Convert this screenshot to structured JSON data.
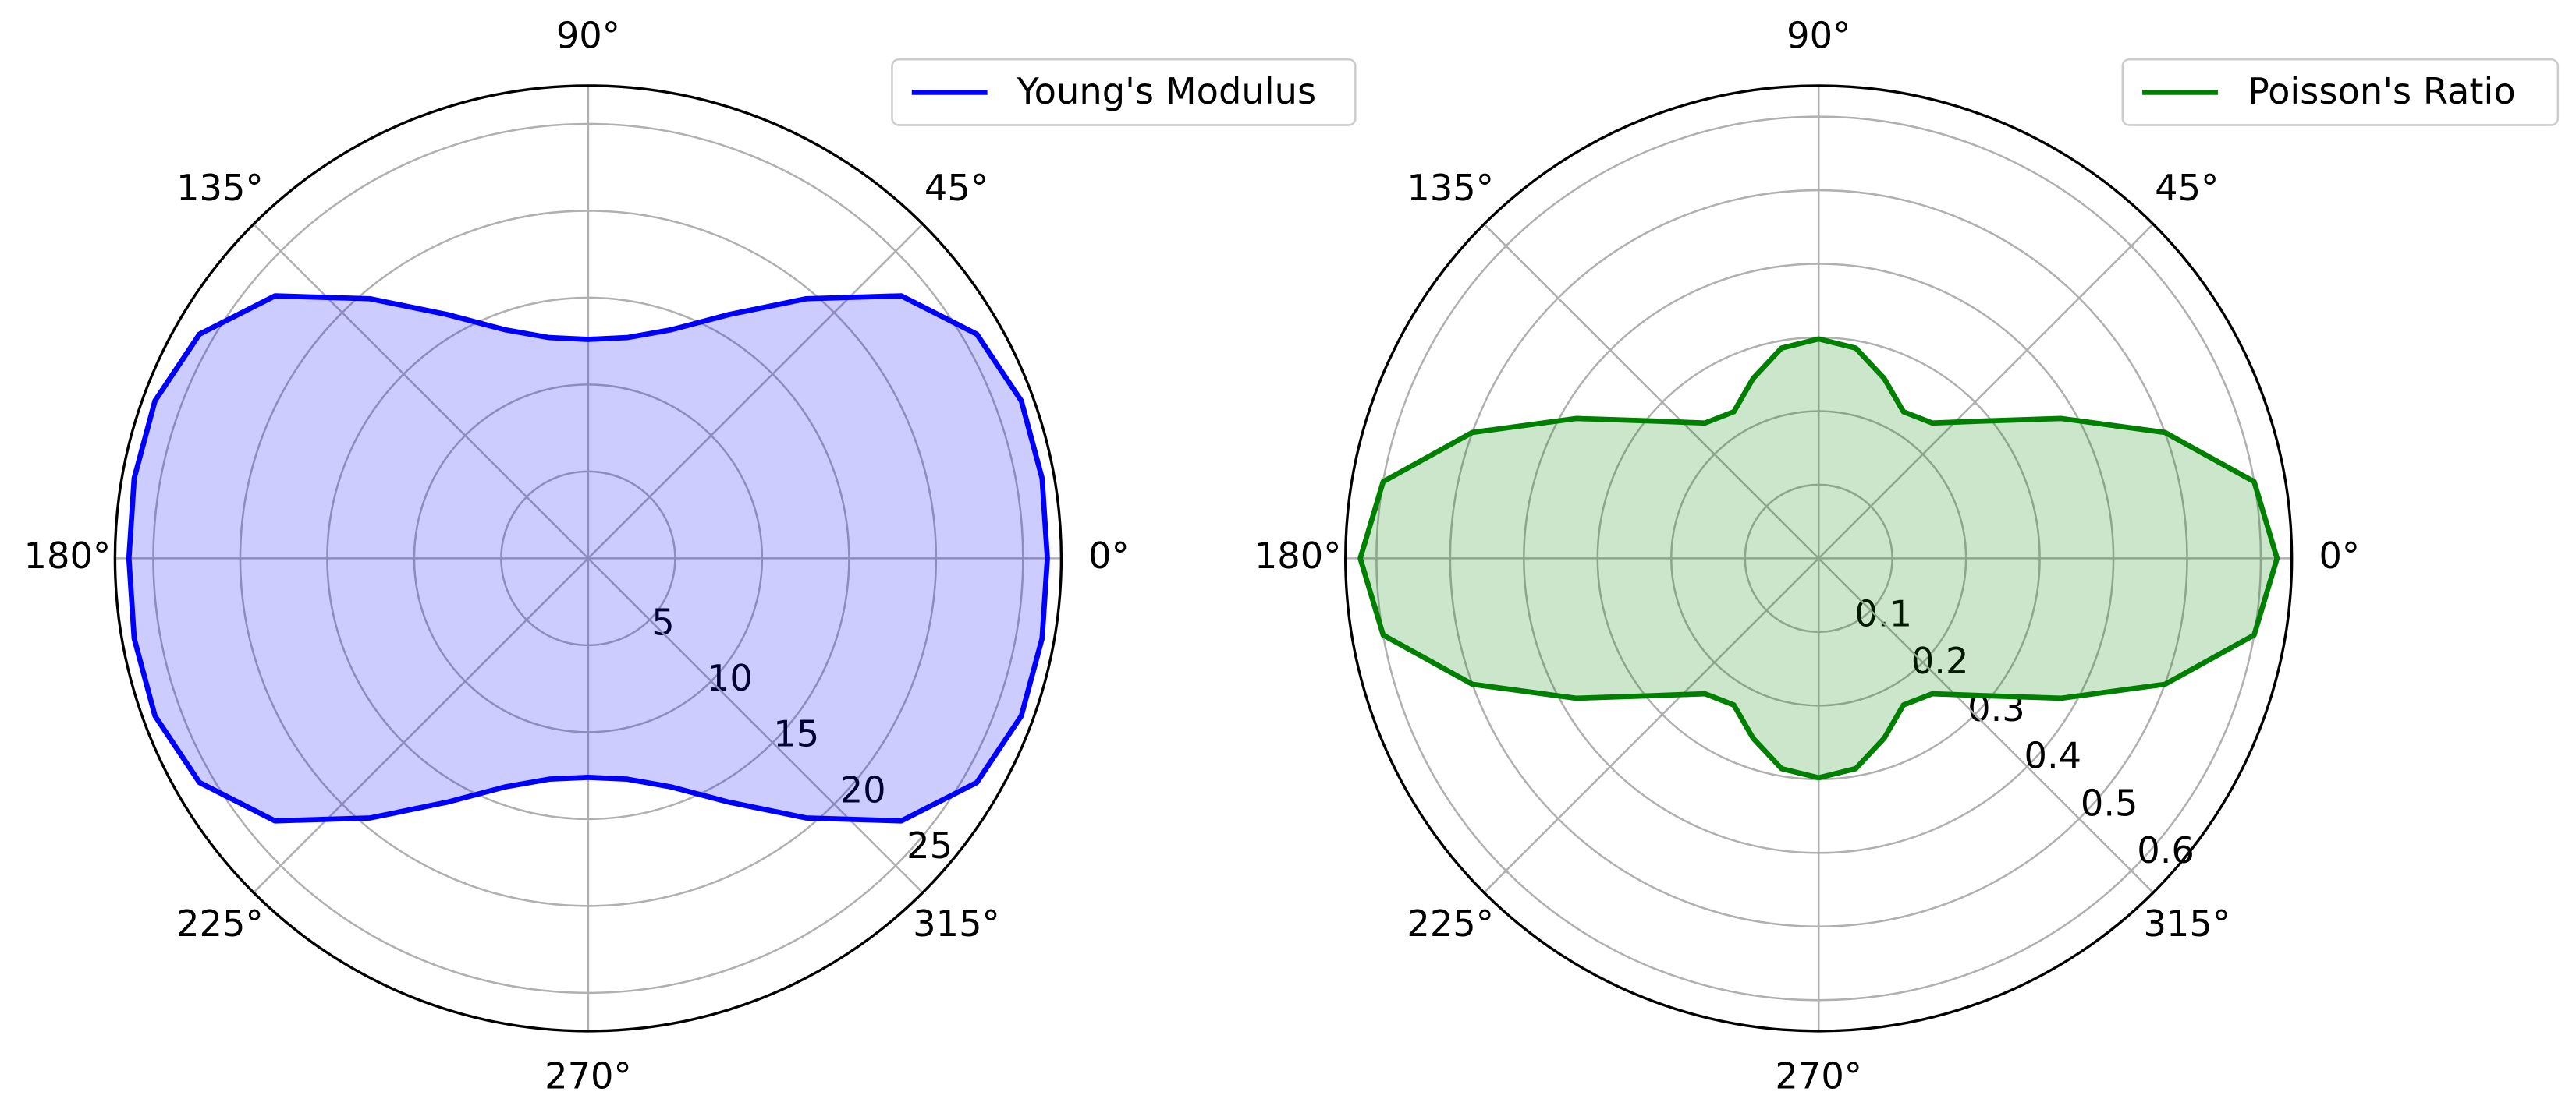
{
  "chart_data": [
    {
      "type": "polar",
      "x": [
        0,
        10,
        20,
        30,
        40,
        50,
        60,
        70,
        80,
        90,
        100,
        110,
        120,
        130,
        140,
        150,
        160,
        170,
        180,
        190,
        200,
        210,
        220,
        230,
        240,
        250,
        260,
        270,
        280,
        290,
        300,
        310,
        320,
        330,
        340,
        350,
        360
      ],
      "series": [
        {
          "name": "Young's Modulus",
          "color": "#0000ff",
          "values": [
            26.4,
            26.5,
            26.5,
            25.8,
            23.5,
            19.5,
            16.2,
            14.0,
            12.9,
            12.6,
            12.9,
            14.0,
            16.2,
            19.5,
            23.5,
            25.8,
            26.5,
            26.5,
            26.4,
            26.5,
            26.5,
            25.8,
            23.5,
            19.5,
            16.2,
            14.0,
            12.9,
            12.6,
            12.9,
            14.0,
            16.2,
            19.5,
            23.5,
            25.8,
            26.5,
            26.5,
            26.4
          ]
        }
      ],
      "xlim": [
        0,
        360
      ],
      "xticks": [
        {
          "value": 0,
          "label": "0°"
        },
        {
          "value": 45,
          "label": "45°"
        },
        {
          "value": 90,
          "label": "90°"
        },
        {
          "value": 135,
          "label": "135°"
        },
        {
          "value": 180,
          "label": "180°"
        },
        {
          "value": 225,
          "label": "225°"
        },
        {
          "value": 270,
          "label": "270°"
        },
        {
          "value": 315,
          "label": "315°"
        }
      ],
      "ylim": [
        0,
        27.2
      ],
      "yticks": [
        5,
        10,
        15,
        20,
        25
      ],
      "grid": true,
      "fill": true,
      "legend": "upper right"
    },
    {
      "type": "polar",
      "x": [
        0,
        10,
        20,
        30,
        40,
        50,
        60,
        70,
        80,
        90,
        100,
        110,
        120,
        130,
        140,
        150,
        160,
        170,
        180,
        190,
        200,
        210,
        220,
        230,
        240,
        250,
        260,
        270,
        280,
        290,
        300,
        310,
        320,
        330,
        340,
        350,
        360
      ],
      "series": [
        {
          "name": "Poisson's Ratio",
          "color": "#008000",
          "values": [
            0.622,
            0.6,
            0.5,
            0.38,
            0.29,
            0.24,
            0.23,
            0.26,
            0.29,
            0.298,
            0.29,
            0.26,
            0.23,
            0.24,
            0.29,
            0.38,
            0.5,
            0.6,
            0.622,
            0.6,
            0.5,
            0.38,
            0.29,
            0.24,
            0.23,
            0.26,
            0.29,
            0.298,
            0.29,
            0.26,
            0.23,
            0.24,
            0.29,
            0.38,
            0.5,
            0.6,
            0.622
          ]
        }
      ],
      "xlim": [
        0,
        360
      ],
      "xticks": [
        {
          "value": 0,
          "label": "0°"
        },
        {
          "value": 45,
          "label": "45°"
        },
        {
          "value": 90,
          "label": "90°"
        },
        {
          "value": 135,
          "label": "135°"
        },
        {
          "value": 180,
          "label": "180°"
        },
        {
          "value": 225,
          "label": "225°"
        },
        {
          "value": 270,
          "label": "270°"
        },
        {
          "value": 315,
          "label": "315°"
        }
      ],
      "ylim": [
        0,
        0.642
      ],
      "yticks": [
        0.1,
        0.2,
        0.3,
        0.4,
        0.5,
        0.6
      ],
      "grid": true,
      "fill": true,
      "legend": "upper right"
    }
  ]
}
